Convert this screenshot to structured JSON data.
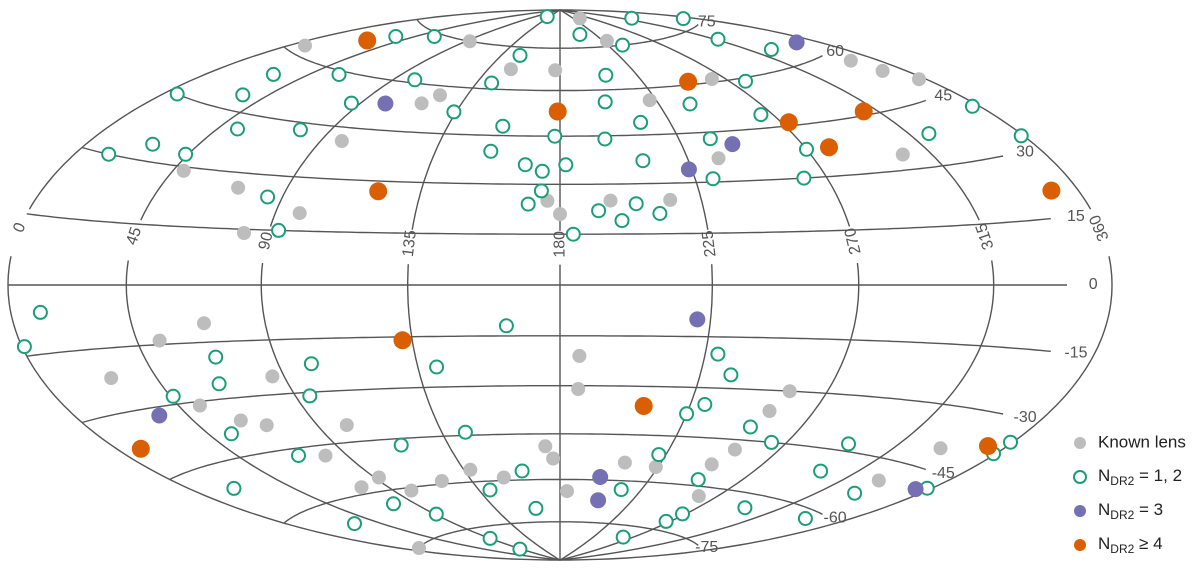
{
  "chart_data": {
    "type": "scatter",
    "projection": "hammer",
    "xlim": [
      0,
      360
    ],
    "ylim": [
      -90,
      90
    ],
    "xticks": [
      0,
      45,
      90,
      135,
      180,
      225,
      270,
      315,
      360
    ],
    "yticks": [
      -75,
      -60,
      -45,
      -30,
      -15,
      0,
      15,
      30,
      45,
      60,
      75
    ],
    "grid": true,
    "legend": "lower right",
    "series": [
      {
        "name": "Known lens",
        "color": "#bdbdbd",
        "marker": "filled",
        "x": [
          244,
          7,
          93,
          177,
          229,
          263,
          348,
          350,
          304,
          357,
          73,
          82,
          98,
          49,
          98,
          122,
          117,
          176,
          180,
          196,
          215,
          236,
          222,
          149,
          186,
          186,
          70,
          53,
          28,
          53,
          86,
          63,
          71,
          81,
          101,
          77,
          92,
          99,
          120,
          138,
          152,
          174,
          177,
          184,
          9,
          224,
          260,
          252,
          254,
          257,
          334,
          331,
          248,
          209
        ],
        "y": [
          86,
          62,
          75,
          67,
          77,
          61,
          57,
          53,
          34,
          49,
          26,
          14,
          20,
          29,
          41,
          57,
          54,
          25,
          21,
          25,
          25,
          37,
          56,
          67,
          -21,
          -31,
          -10,
          -14,
          -22,
          -31,
          -25,
          -36,
          -38,
          -48,
          -40,
          -58,
          -56,
          -61,
          -59,
          -56,
          -59,
          -49,
          -53,
          -64,
          -75,
          -55,
          -63,
          -48,
          -36,
          -30,
          -40,
          -50,
          -53,
          -54
        ]
      },
      {
        "name": "NDR2 = 1, 2",
        "color": "#1b9e77",
        "marker": "open",
        "x": [
          126,
          325,
          354,
          34,
          57,
          29,
          6,
          14,
          85,
          93,
          53,
          78,
          86,
          134,
          157,
          155,
          168,
          174,
          174,
          170,
          178,
          207,
          201,
          238,
          213,
          197,
          209,
          204,
          192,
          199,
          211,
          231,
          237,
          239,
          265,
          278,
          327,
          317,
          262,
          270,
          323,
          357,
          359,
          359,
          359,
          12,
          1,
          164,
          141,
          101,
          70,
          46,
          54,
          19,
          31,
          70,
          95,
          144,
          91,
          90,
          88,
          163,
          141,
          162,
          260,
          267,
          268,
          214,
          222,
          225,
          230,
          251,
          264,
          299,
          295,
          296,
          340,
          229,
          235,
          358,
          332,
          249,
          116,
          78,
          66,
          44,
          101,
          149,
          206,
          59,
          34,
          27,
          143,
          182,
          184
        ],
        "y": [
          87,
          82,
          77,
          71,
          74,
          55,
          45,
          30,
          24,
          15,
          41,
          43,
          52,
          52,
          48,
          40,
          36,
          34,
          28,
          24,
          45,
          65,
          56,
          75,
          49,
          44,
          37,
          24,
          22,
          19,
          21,
          31,
          43,
          54,
          49,
          59,
          65,
          71,
          30,
          38,
          38,
          41,
          33,
          -35,
          -38,
          -6,
          -13,
          -12,
          -24,
          -22,
          -19,
          -28,
          -39,
          -51,
          -66,
          -47,
          -31,
          -44,
          -69,
          -79,
          -84,
          -70,
          -63,
          -57,
          -79,
          -72,
          -69,
          -63,
          -51,
          -38,
          -35,
          -41,
          -45,
          -51,
          -43,
          -64,
          -62,
          -20,
          -26,
          -48,
          -54,
          -58,
          -47,
          -64,
          -26,
          33,
          61,
          72,
          80,
          59,
          49,
          34,
          62,
          36,
          15
        ]
      },
      {
        "name": "NDR2 = 3",
        "color": "#7570b3",
        "marker": "filled",
        "x": [
          350,
          101,
          244,
          224,
          221,
          34,
          200,
          204,
          354
        ],
        "y": [
          64,
          53,
          41,
          34,
          -10,
          -32,
          -59,
          -67,
          -49
        ]
      },
      {
        "name": "NDR2 ≥ 4",
        "color": "#d95f02",
        "marker": "filled",
        "x": [
          27,
          249,
          179,
          273,
          309,
          279,
          349,
          121,
          132,
          209,
          10,
          352
        ],
        "y": [
          68,
          61,
          53,
          46,
          46,
          38,
          21,
          27,
          -16,
          -36,
          -38,
          -37
        ]
      }
    ]
  }
}
